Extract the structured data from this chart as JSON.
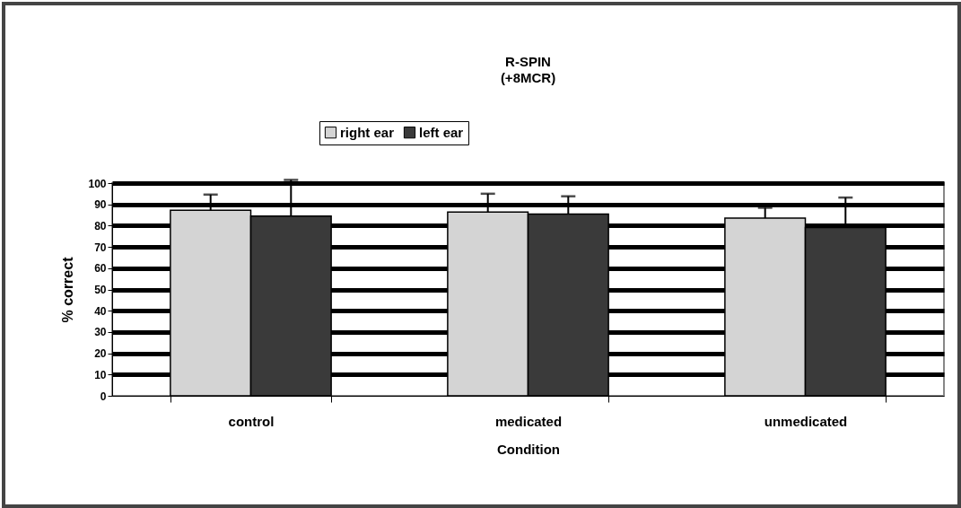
{
  "chart_data": {
    "type": "bar",
    "title": "R-SPIN",
    "subtitle": "(+8MCR)",
    "xlabel": "Condition",
    "ylabel": "% correct",
    "categories": [
      "control",
      "medicated",
      "unmedicated"
    ],
    "series": [
      {
        "name": "right ear",
        "color": "#d4d4d4",
        "values": [
          87.2,
          86.4,
          83.5
        ],
        "errors": [
          [
            87.2,
            94.6
          ],
          [
            86.4,
            95.0
          ],
          [
            83.5,
            88.4
          ]
        ]
      },
      {
        "name": "left ear",
        "color": "#3a3a3a",
        "values": [
          84.5,
          85.4,
          79.1
        ],
        "errors": [
          [
            84.5,
            101.5
          ],
          [
            85.4,
            93.8
          ],
          [
            79.1,
            93.2
          ]
        ]
      }
    ],
    "ylim": [
      0,
      100
    ],
    "yticks": [
      0,
      10,
      20,
      30,
      40,
      50,
      60,
      70,
      80,
      90,
      100
    ],
    "grid": "y",
    "legend": "top"
  }
}
